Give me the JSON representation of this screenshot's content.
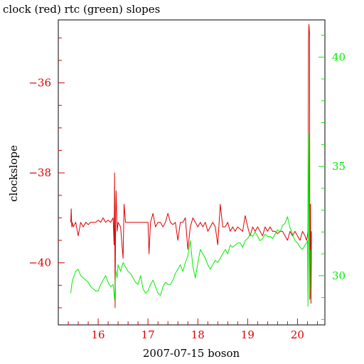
{
  "chart_data": {
    "type": "line",
    "title": "clock (red) rtc (green) slopes",
    "xlabel": "2007-07-15 boson",
    "ylabel": "clockslope",
    "xlim": [
      15.2,
      20.55
    ],
    "ylim": [
      -41.38,
      -34.6
    ],
    "y2lim": [
      27.75,
      41.7
    ],
    "x_ticks": [
      16,
      17,
      18,
      19,
      20
    ],
    "y_ticks": [
      -36,
      -38,
      -40
    ],
    "y2_ticks": [
      40,
      35,
      30
    ],
    "colors": {
      "clock": "#dd0000",
      "rtc": "#00ee00",
      "axis": "#000000"
    },
    "series": [
      {
        "name": "clock",
        "axis": "left",
        "x": [
          15.45,
          15.46,
          15.47,
          15.48,
          15.5,
          15.55,
          15.6,
          15.65,
          15.7,
          15.75,
          15.8,
          15.85,
          15.9,
          15.95,
          16.0,
          16.05,
          16.1,
          16.15,
          16.2,
          16.25,
          16.3,
          16.32,
          16.33,
          16.34,
          16.35,
          16.36,
          16.38,
          16.4,
          16.45,
          16.5,
          16.52,
          16.55,
          16.6,
          16.65,
          16.7,
          16.75,
          16.8,
          16.85,
          16.9,
          16.95,
          17.0,
          17.02,
          17.05,
          17.1,
          17.15,
          17.2,
          17.25,
          17.3,
          17.35,
          17.4,
          17.45,
          17.5,
          17.55,
          17.6,
          17.65,
          17.7,
          17.75,
          17.8,
          17.85,
          17.9,
          17.95,
          18.0,
          18.05,
          18.1,
          18.15,
          18.2,
          18.25,
          18.3,
          18.35,
          18.4,
          18.45,
          18.5,
          18.55,
          18.6,
          18.65,
          18.7,
          18.75,
          18.8,
          18.85,
          18.9,
          18.95,
          19.0,
          19.05,
          19.1,
          19.15,
          19.2,
          19.25,
          19.3,
          19.35,
          19.4,
          19.45,
          19.5,
          19.55,
          19.6,
          19.65,
          19.7,
          19.75,
          19.8,
          19.85,
          19.9,
          19.95,
          20.0,
          20.05,
          20.1,
          20.15,
          20.18,
          20.2,
          20.21,
          20.22,
          20.23,
          20.24,
          20.25,
          20.26,
          20.27,
          20.28
        ],
        "y": [
          -39.1,
          -38.8,
          -39.2,
          -39.1,
          -39.2,
          -39.1,
          -39.4,
          -39.1,
          -39.2,
          -39.1,
          -39.15,
          -39.1,
          -39.1,
          -39.1,
          -39.05,
          -39.1,
          -39.0,
          -39.1,
          -39.05,
          -39.1,
          -39.0,
          -39.6,
          -38.0,
          -41.0,
          -39.1,
          -38.4,
          -39.3,
          -39.1,
          -39.2,
          -39.9,
          -38.7,
          -39.1,
          -39.1,
          -39.1,
          -39.1,
          -39.1,
          -39.1,
          -39.1,
          -39.1,
          -39.1,
          -39.1,
          -39.8,
          -39.1,
          -38.9,
          -39.2,
          -39.1,
          -39.1,
          -39.2,
          -39.1,
          -38.9,
          -39.1,
          -39.15,
          -39.1,
          -39.5,
          -39.1,
          -39.1,
          -39.0,
          -39.7,
          -39.2,
          -39.0,
          -39.1,
          -39.2,
          -39.1,
          -39.2,
          -39.1,
          -39.3,
          -39.2,
          -39.1,
          -39.2,
          -39.6,
          -38.7,
          -39.2,
          -39.2,
          -39.1,
          -39.3,
          -39.2,
          -39.3,
          -39.2,
          -39.25,
          -39.3,
          -38.95,
          -39.2,
          -39.4,
          -39.2,
          -39.3,
          -39.2,
          -39.3,
          -39.4,
          -39.2,
          -39.3,
          -39.2,
          -39.3,
          -39.3,
          -39.35,
          -39.3,
          -39.3,
          -39.4,
          -39.5,
          -39.3,
          -39.4,
          -39.3,
          -39.4,
          -39.5,
          -39.3,
          -39.4,
          -39.5,
          -39.4,
          -39.3,
          -35.0,
          -34.7,
          -34.9,
          -40.8,
          -38.7,
          -40.9,
          -39.3
        ]
      },
      {
        "name": "rtc",
        "axis": "right",
        "x": [
          15.45,
          15.47,
          15.5,
          15.55,
          15.6,
          15.65,
          15.7,
          15.75,
          15.8,
          15.85,
          15.9,
          15.95,
          16.0,
          16.05,
          16.1,
          16.15,
          16.2,
          16.25,
          16.3,
          16.33,
          16.35,
          16.38,
          16.4,
          16.45,
          16.5,
          16.55,
          16.6,
          16.65,
          16.7,
          16.75,
          16.8,
          16.85,
          16.9,
          16.95,
          17.0,
          17.05,
          17.1,
          17.15,
          17.2,
          17.25,
          17.3,
          17.35,
          17.4,
          17.45,
          17.5,
          17.55,
          17.6,
          17.65,
          17.7,
          17.75,
          17.8,
          17.85,
          17.9,
          17.95,
          18.0,
          18.05,
          18.1,
          18.15,
          18.2,
          18.25,
          18.3,
          18.35,
          18.4,
          18.45,
          18.5,
          18.55,
          18.6,
          18.65,
          18.7,
          18.75,
          18.8,
          18.85,
          18.9,
          18.95,
          19.0,
          19.05,
          19.1,
          19.15,
          19.2,
          19.25,
          19.3,
          19.35,
          19.4,
          19.45,
          19.5,
          19.55,
          19.6,
          19.65,
          19.7,
          19.75,
          19.8,
          19.85,
          19.9,
          19.95,
          20.0,
          20.05,
          20.1,
          20.15,
          20.18,
          20.2,
          20.21,
          20.22,
          20.23,
          20.24,
          20.25,
          20.26
        ],
        "y": [
          29.2,
          29.6,
          29.9,
          30.2,
          30.3,
          30.0,
          29.9,
          29.8,
          29.7,
          29.5,
          29.4,
          29.3,
          29.3,
          29.6,
          29.8,
          30.0,
          29.7,
          29.5,
          29.6,
          28.9,
          30.3,
          29.9,
          30.5,
          30.2,
          30.6,
          30.4,
          30.2,
          30.1,
          29.9,
          29.7,
          29.6,
          30.0,
          29.4,
          29.2,
          29.3,
          29.6,
          29.8,
          29.5,
          29.2,
          29.1,
          29.5,
          29.7,
          29.6,
          29.6,
          29.8,
          30.1,
          30.3,
          30.5,
          30.2,
          30.6,
          30.9,
          31.6,
          30.4,
          29.9,
          30.6,
          31.2,
          31.0,
          30.8,
          30.5,
          30.3,
          30.5,
          30.7,
          30.6,
          30.8,
          31.0,
          31.2,
          31.0,
          31.4,
          31.3,
          31.4,
          31.5,
          31.5,
          31.3,
          31.6,
          31.7,
          31.9,
          31.8,
          32.0,
          31.8,
          31.6,
          31.7,
          31.9,
          31.8,
          31.8,
          31.7,
          31.9,
          32.1,
          32.0,
          32.3,
          32.4,
          32.7,
          32.2,
          31.9,
          31.6,
          31.5,
          31.3,
          31.2,
          31.4,
          31.5,
          31.6,
          28.6,
          36.5,
          34.0,
          28.9,
          29.5,
          31.2
        ]
      }
    ]
  }
}
